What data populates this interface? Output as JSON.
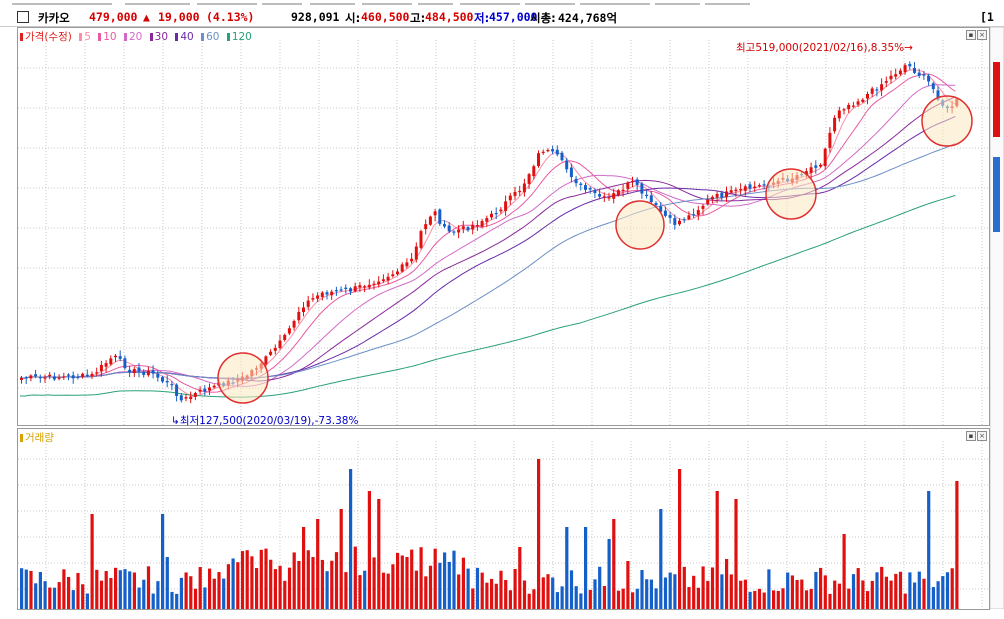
{
  "header": {
    "name": "카카오",
    "price": "479,000",
    "change_arrow": "▲",
    "change": "19,000",
    "change_pct": "(4.13%)",
    "volume": "928,091",
    "open_label": "시:",
    "open": "460,500",
    "high_label": "고:",
    "high": "484,500",
    "low_label": "저:",
    "low": "457,000",
    "mcap_label": "시총:",
    "mcap": "424,768억",
    "right_tab": "[1"
  },
  "price_panel": {
    "legend": [
      {
        "label": "가격(수정)",
        "color": "#e0201c"
      },
      {
        "label": "5",
        "color": "#ff8ca8"
      },
      {
        "label": "10",
        "color": "#e85aa0"
      },
      {
        "label": "20",
        "color": "#d26ac8"
      },
      {
        "label": "30",
        "color": "#8a2a9a"
      },
      {
        "label": "40",
        "color": "#6a2aa8"
      },
      {
        "label": "60",
        "color": "#6c90c8"
      },
      {
        "label": "120",
        "color": "#2aa07a"
      }
    ],
    "high_note": "최고519,000(2021/02/16),8.35%",
    "low_note": "최저127,500(2020/03/19),-73.38%"
  },
  "volume_panel": {
    "legend": "거래량",
    "legend_color": "#d8a000"
  },
  "colors": {
    "up": "#e01010",
    "down": "#1560c8",
    "grid": "#c8c8c8",
    "highlight_fill": "#fce7bf",
    "highlight_stroke": "#e03030"
  },
  "chart_data": {
    "type": "candlestick",
    "series": [
      {
        "name": "가격(수정)",
        "high_value": 519000,
        "high_date": "2021/02/16",
        "low_value": 127500,
        "low_date": "2020/03/19",
        "last_close": 479000
      },
      {
        "name": "거래량",
        "last_value": 928091
      }
    ],
    "moving_averages": [
      "5",
      "10",
      "20",
      "30",
      "40",
      "60",
      "120"
    ],
    "grid": true
  }
}
